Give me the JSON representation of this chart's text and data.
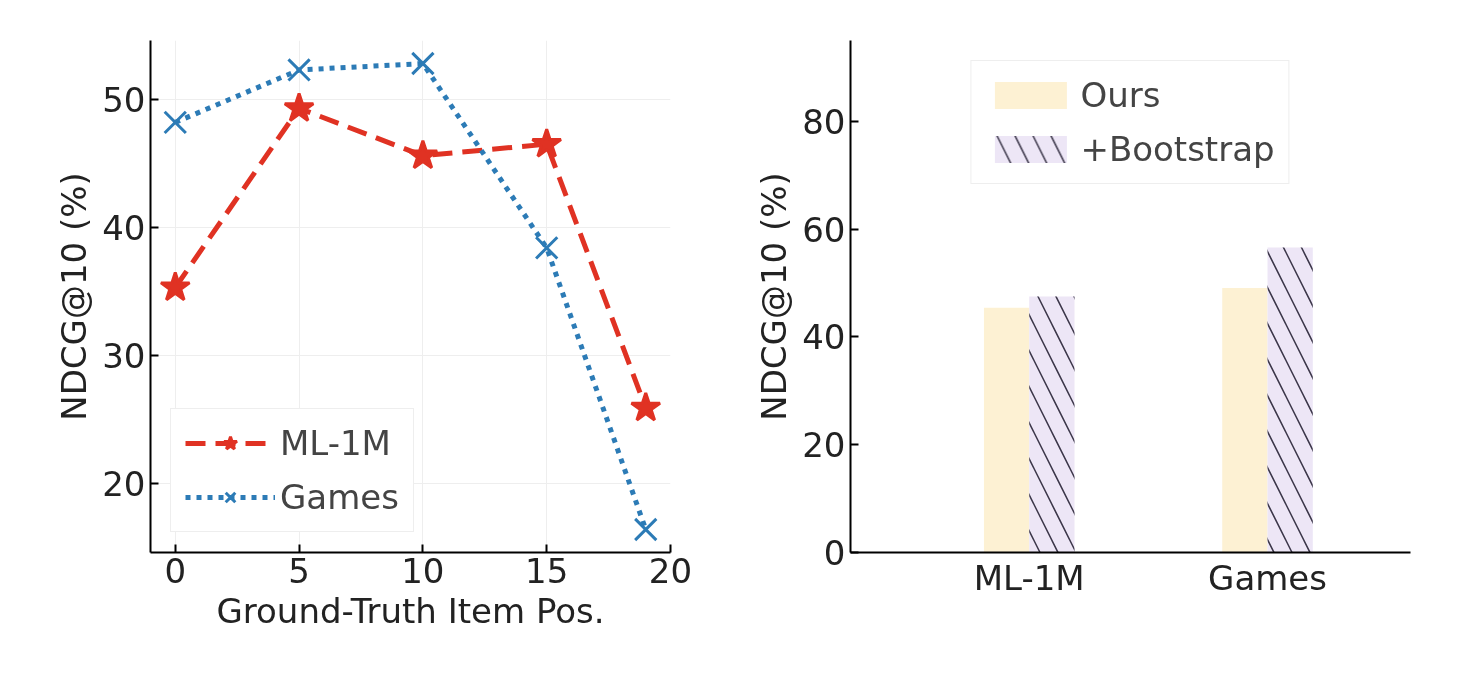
{
  "chart_data": [
    {
      "type": "line",
      "xlabel": "Ground-Truth Item Pos.",
      "ylabel": "NDCG@10 (%)",
      "x": [
        0,
        5,
        10,
        15,
        19
      ],
      "xlim": [
        -1.0,
        20
      ],
      "xticks": [
        0,
        5,
        10,
        15,
        20
      ],
      "ylim": [
        14.6,
        54.6
      ],
      "yticks": [
        20,
        30,
        40,
        50
      ],
      "grid": true,
      "legend": "bottom left",
      "series": [
        {
          "name": "ML-1M",
          "color": "#e03223",
          "values": [
            35.3,
            49.3,
            45.6,
            46.5,
            25.9
          ],
          "marker": "star",
          "line_style": "dashed"
        },
        {
          "name": "Games",
          "color": "#2c7bb6",
          "values": [
            48.2,
            52.3,
            52.8,
            38.4,
            16.4
          ],
          "marker": "cross",
          "line_style": "dotted"
        }
      ]
    },
    {
      "type": "bar",
      "ylabel": "NDCG@10 (%)",
      "categories": [
        "ML-1M",
        "Games"
      ],
      "ylim": [
        0,
        95
      ],
      "yticks": [
        0,
        20,
        40,
        60,
        80
      ],
      "legend": "top",
      "series": [
        {
          "name": "Ours",
          "color": "#fdf1d3",
          "values": [
            45.4,
            49.1
          ]
        },
        {
          "name": "+Bootstrap",
          "color": "#ede6f6",
          "values": [
            47.5,
            56.6
          ]
        }
      ]
    }
  ]
}
